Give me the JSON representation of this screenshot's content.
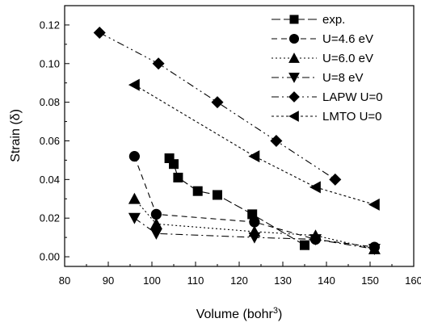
{
  "chart_data": {
    "type": "line",
    "xlabel": "Volume (bohr",
    "xlabel_sup": "3",
    "xlabel_close": ")",
    "ylabel": "Strain (δ)",
    "xlim": [
      80,
      160
    ],
    "ylim": [
      -0.005,
      0.13
    ],
    "xticks": [
      "80",
      "90",
      "100",
      "110",
      "120",
      "130",
      "140",
      "150",
      "160"
    ],
    "yticks": [
      "0.00",
      "0.02",
      "0.04",
      "0.06",
      "0.08",
      "0.10",
      "0.12"
    ],
    "legend_position": "top-right",
    "series": [
      {
        "name": "exp.",
        "marker": "square",
        "dash": "11,4",
        "x": [
          104,
          105,
          106,
          110.5,
          115,
          123,
          135
        ],
        "y": [
          0.051,
          0.048,
          0.041,
          0.034,
          0.032,
          0.022,
          0.006
        ]
      },
      {
        "name": "U=4.6 eV",
        "marker": "circle",
        "dash": "7,5",
        "x": [
          96,
          101,
          123.5,
          137.5,
          151
        ],
        "y": [
          0.052,
          0.022,
          0.018,
          0.009,
          0.005
        ]
      },
      {
        "name": "U=6.0 eV",
        "marker": "triangle-up",
        "dash": "2,3",
        "x": [
          96,
          101,
          123.5,
          137.5,
          151
        ],
        "y": [
          0.03,
          0.017,
          0.013,
          0.011,
          0.004
        ]
      },
      {
        "name": "U=8 eV",
        "marker": "triangle-down",
        "dash": "9,4,2,4",
        "x": [
          96,
          101,
          123.5,
          137.5,
          151
        ],
        "y": [
          0.02,
          0.012,
          0.01,
          0.009,
          0.004
        ]
      },
      {
        "name": "LAPW U=0",
        "marker": "diamond",
        "dash": "9,4,2,4,2,4",
        "x": [
          88,
          101.5,
          115,
          128.5,
          142
        ],
        "y": [
          0.116,
          0.1,
          0.08,
          0.06,
          0.04
        ]
      },
      {
        "name": "LMTO U=0",
        "marker": "triangle-left",
        "dash": "3,3",
        "x": [
          96,
          123.5,
          137.5,
          151
        ],
        "y": [
          0.089,
          0.052,
          0.036,
          0.027
        ]
      }
    ]
  }
}
